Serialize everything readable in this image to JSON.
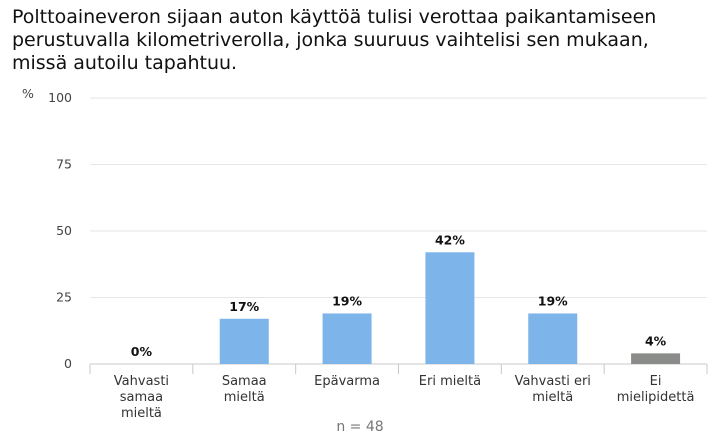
{
  "chart_data": {
    "type": "bar",
    "title": "Polttoaineveron sijaan auton käyttöä tulisi verottaa paikantamiseen\nperustuvalla kilometriverolla, jonka suuruus vaihtelisi sen mukaan,\nmissä autoilu tapahtuu.",
    "ylabel": "%",
    "xlabel": "",
    "ylim": [
      0,
      100
    ],
    "yticks": [
      "0",
      "25",
      "50",
      "75",
      "100"
    ],
    "categories": [
      [
        "Vahvasti",
        "samaa",
        "mieltä"
      ],
      [
        "Samaa",
        "mieltä"
      ],
      [
        "Epävarma"
      ],
      [
        "Eri mieltä"
      ],
      [
        "Vahvasti eri",
        "mieltä"
      ],
      [
        "Ei",
        "mielipidettä"
      ]
    ],
    "values": [
      0,
      17,
      19,
      42,
      19,
      4
    ],
    "data_labels": [
      "0%",
      "17%",
      "19%",
      "42%",
      "19%",
      "4%"
    ],
    "colors": [
      "#7db4ea",
      "#7db4ea",
      "#7db4ea",
      "#7db4ea",
      "#7db4ea",
      "#8a8c89"
    ],
    "grid": true,
    "note": "n = 48"
  }
}
